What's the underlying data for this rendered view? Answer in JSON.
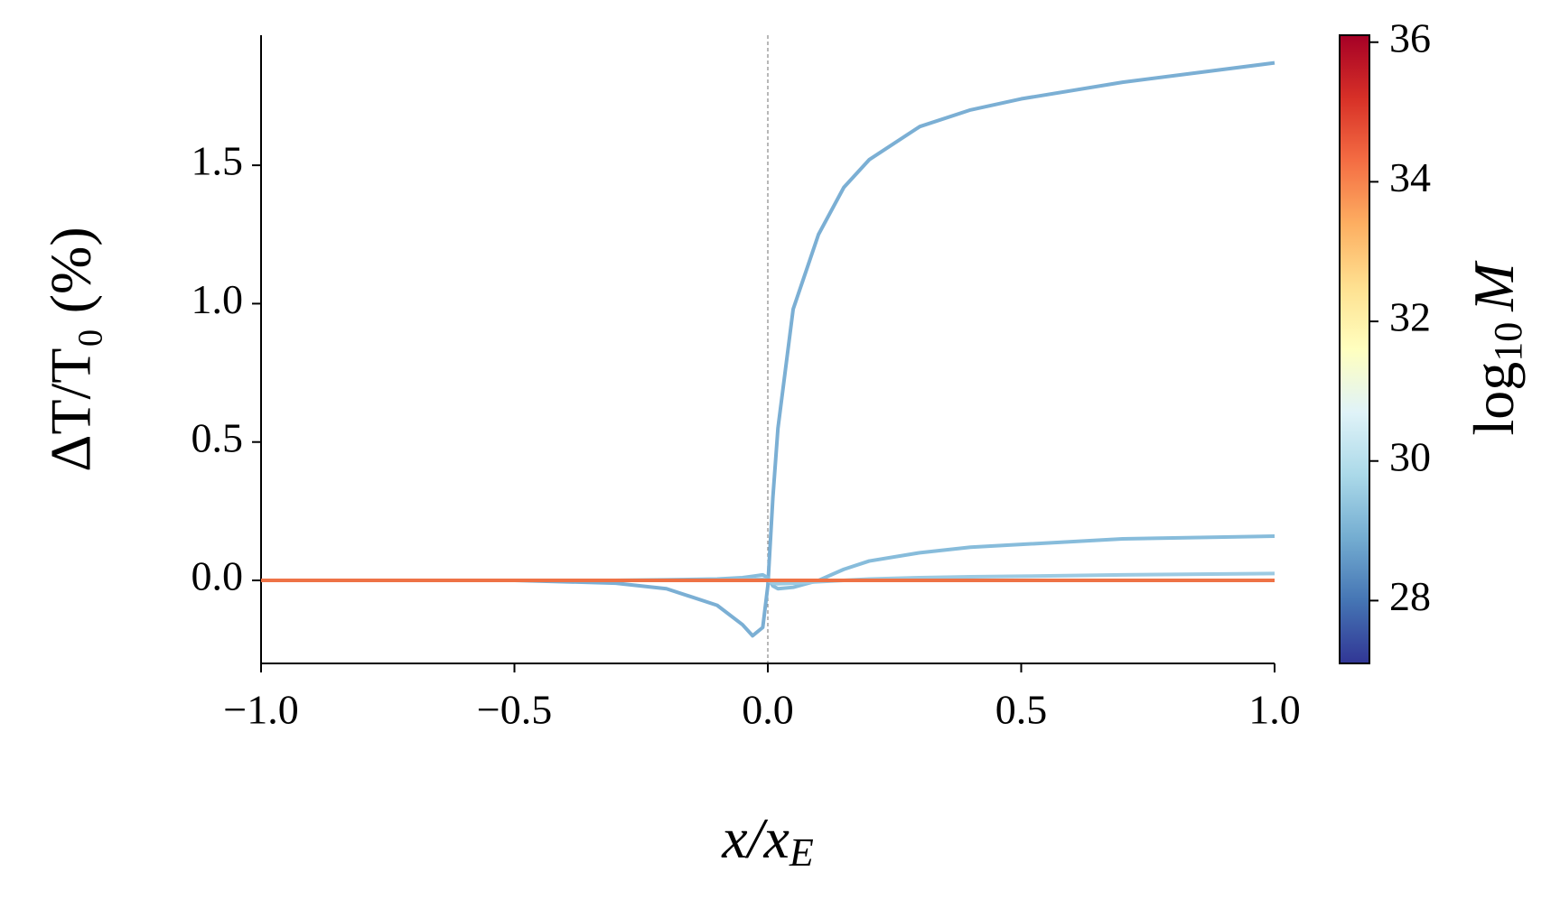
{
  "chart_data": {
    "type": "line",
    "xlabel": [
      "x/x",
      "E"
    ],
    "ylabel": "ΔT/T₀ (%)",
    "x": [
      -1,
      -0.5,
      -0.3,
      -0.2,
      -0.1,
      -0.05,
      -0.03,
      -0.01,
      0,
      0.01,
      0.02,
      0.05,
      0.1,
      0.15,
      0.2,
      0.3,
      0.4,
      0.5,
      0.7,
      1
    ],
    "series": [
      {
        "color": "#7bafd4",
        "values": [
          0,
          0,
          -0.01,
          -0.03,
          -0.09,
          -0.16,
          -0.2,
          -0.17,
          -0.02,
          0.3,
          0.55,
          0.98,
          1.25,
          1.42,
          1.52,
          1.64,
          1.7,
          1.74,
          1.8,
          1.87
        ]
      },
      {
        "color": "#87bcdb",
        "values": [
          0,
          0,
          0,
          0.002,
          0.005,
          0.01,
          0.015,
          0.02,
          0.01,
          -0.02,
          -0.03,
          -0.025,
          0,
          0.04,
          0.07,
          0.1,
          0.12,
          0.13,
          0.15,
          0.16
        ]
      },
      {
        "color": "#9ccae2",
        "values": [
          0,
          0,
          0,
          0,
          0.001,
          0.002,
          0.003,
          0.004,
          0,
          -0.01,
          -0.012,
          -0.01,
          -0.005,
          0,
          0.005,
          0.01,
          0.013,
          0.015,
          0.02,
          0.025
        ]
      },
      {
        "color": "#ee7246",
        "values": [
          0,
          0,
          0,
          0,
          0,
          0,
          0,
          0,
          0,
          0,
          0,
          0,
          0,
          0,
          0,
          0,
          0,
          0,
          0,
          0
        ]
      }
    ],
    "vline": 0,
    "xlim": [
      -1,
      1
    ],
    "xticks": [
      {
        "value": -1,
        "label": "−1.0"
      },
      {
        "value": -0.5,
        "label": "−0.5"
      },
      {
        "value": 0,
        "label": "0.0"
      },
      0.5,
      {
        "value": 1,
        "label": "1.0"
      }
    ],
    "ylim": [
      -0.3,
      1.97
    ],
    "yticks": [
      {
        "value": 0,
        "label": "0.0"
      },
      0.5,
      {
        "value": 1,
        "label": "1.0"
      },
      1.5
    ],
    "colorbar": {
      "label": [
        "log",
        "10",
        "M"
      ],
      "lim": [
        27.1,
        36.1
      ],
      "ticks": [
        28,
        30,
        32,
        34,
        36
      ],
      "colors": [
        "#313695",
        "#4575b4",
        "#74add1",
        "#abd9e9",
        "#e0f3f8",
        "#ffffbf",
        "#fee090",
        "#fdae61",
        "#f46d43",
        "#d73027",
        "#a50026"
      ]
    }
  }
}
